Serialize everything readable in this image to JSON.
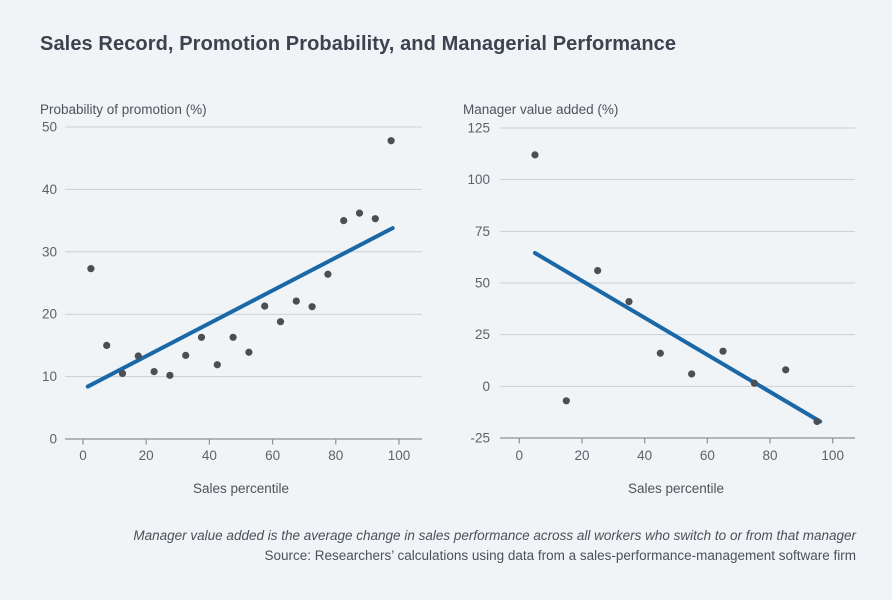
{
  "page": {
    "title": "Sales Record, Promotion Probability, and Managerial Performance",
    "footer_note": "Manager value added is the average change in sales performance across all workers who switch to or from that manager",
    "footer_source": "Source: Researchers’ calculations using data from a sales-performance-management software firm"
  },
  "colors": {
    "background": "#f0f4f7",
    "title_text": "#3c434e",
    "axis_title_text": "#4d535a",
    "tick_label_text": "#5c6269",
    "gridline": "#cacfd4",
    "axis_line": "#8b9198",
    "point": "#4b4e53",
    "trend_line": "#1a68a7",
    "footer_text": "#4a515a"
  },
  "chart_data": [
    {
      "type": "scatter",
      "title": "Probability of promotion (%)",
      "xlabel": "Sales percentile",
      "ylabel": "Probability of promotion (%)",
      "xlim": [
        0,
        100
      ],
      "ylim": [
        0,
        50
      ],
      "xticks": [
        0,
        20,
        40,
        60,
        80,
        100
      ],
      "yticks": [
        0,
        10,
        20,
        30,
        40,
        50
      ],
      "grid": true,
      "legend": "none",
      "points": [
        [
          2.5,
          27.3
        ],
        [
          7.5,
          15.0
        ],
        [
          12.5,
          10.5
        ],
        [
          17.5,
          13.3
        ],
        [
          22.5,
          10.8
        ],
        [
          27.5,
          10.2
        ],
        [
          32.5,
          13.4
        ],
        [
          37.5,
          16.3
        ],
        [
          42.5,
          11.9
        ],
        [
          47.5,
          16.3
        ],
        [
          52.5,
          13.9
        ],
        [
          57.5,
          21.3
        ],
        [
          62.5,
          18.8
        ],
        [
          67.5,
          22.1
        ],
        [
          72.5,
          21.2
        ],
        [
          77.5,
          26.4
        ],
        [
          82.5,
          35.0
        ],
        [
          87.5,
          36.2
        ],
        [
          92.5,
          35.3
        ],
        [
          97.5,
          47.8
        ]
      ],
      "trend_line": {
        "x1": 1.5,
        "y1": 8.4,
        "x2": 98,
        "y2": 33.8
      }
    },
    {
      "type": "scatter",
      "title": "Manager value added (%)",
      "xlabel": "Sales percentile",
      "ylabel": "Manager value added (%)",
      "xlim": [
        0,
        100
      ],
      "ylim": [
        -25,
        125
      ],
      "xticks": [
        0,
        20,
        40,
        60,
        80,
        100
      ],
      "yticks": [
        -25,
        0,
        25,
        50,
        75,
        100,
        125
      ],
      "grid": true,
      "legend": "none",
      "points": [
        [
          5,
          112
        ],
        [
          15,
          -7
        ],
        [
          25,
          56
        ],
        [
          35,
          41
        ],
        [
          45,
          16
        ],
        [
          55,
          6
        ],
        [
          65,
          17
        ],
        [
          75,
          1.5
        ],
        [
          85,
          8
        ],
        [
          95,
          -17
        ]
      ],
      "trend_line": {
        "x1": 5,
        "y1": 64.5,
        "x2": 96,
        "y2": -17
      }
    }
  ]
}
